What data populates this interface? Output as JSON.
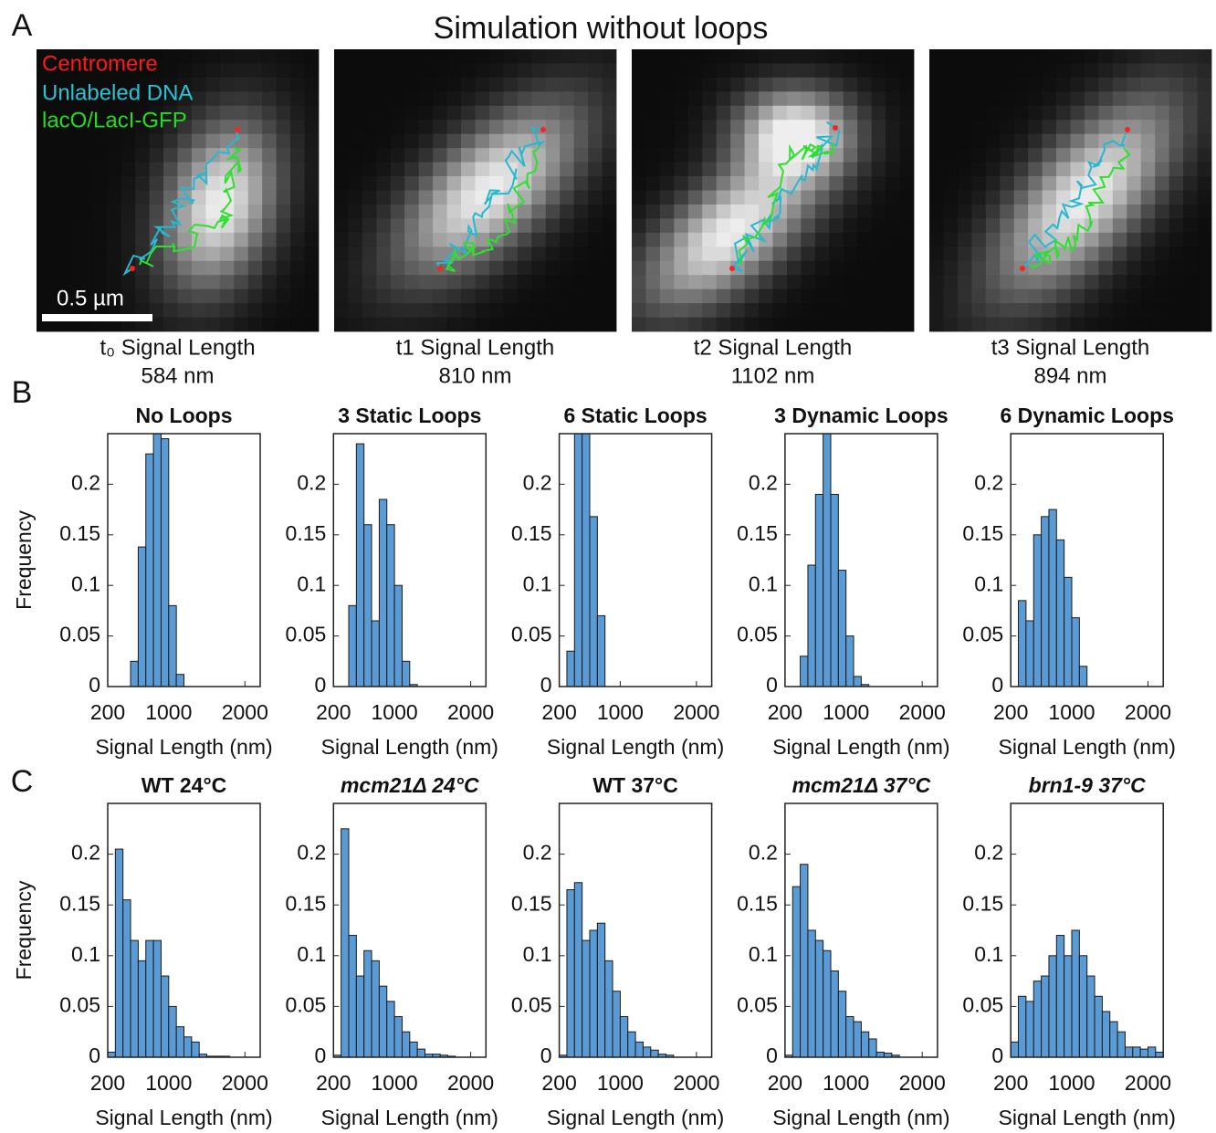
{
  "panel_labels": [
    "A",
    "B",
    "C"
  ],
  "simulation": {
    "title": "Simulation without loops",
    "legend": [
      "Centromere",
      "Unlabeled DNA",
      "lacO/LacI-GFP"
    ],
    "scale_bar": "0.5 µm",
    "captions": [
      {
        "label": "t₀ Signal Length",
        "length": "584 nm"
      },
      {
        "label": "t1 Signal Length",
        "length": "810 nm"
      },
      {
        "label": "t2 Signal Length",
        "length": "1102 nm"
      },
      {
        "label": "t3 Signal Length",
        "length": "894 nm"
      }
    ]
  },
  "chart_data": [
    {
      "type": "histogram",
      "title": "No Loops",
      "bins": [
        500,
        600,
        700,
        800,
        900,
        1000,
        1100,
        1200
      ],
      "values": [
        0.025,
        0.138,
        0.23,
        0.25,
        0.245,
        0.08,
        0.012
      ],
      "color": "#5b9bd5",
      "xlim": [
        200,
        2200
      ],
      "xticks": [
        200,
        1000,
        2000
      ],
      "ylim": [
        0,
        0.25
      ],
      "yticks": [
        0,
        0.05,
        0.1,
        0.15,
        0.2
      ],
      "xlabel": "Signal Length (nm)",
      "ylabel": "Frequency"
    },
    {
      "type": "histogram",
      "title": "3 Static Loops",
      "bins": [
        400,
        500,
        600,
        700,
        800,
        900,
        1000,
        1100,
        1200,
        1300
      ],
      "values": [
        0.08,
        0.24,
        0.16,
        0.065,
        0.185,
        0.16,
        0.1,
        0.025,
        0.002
      ],
      "color": "#5b9bd5",
      "xlim": [
        200,
        2200
      ],
      "xticks": [
        200,
        1000,
        2000
      ],
      "ylim": [
        0,
        0.25
      ],
      "yticks": [
        0,
        0.05,
        0.1,
        0.15,
        0.2
      ],
      "xlabel": "Signal Length (nm)"
    },
    {
      "type": "histogram",
      "title": "6 Static Loops",
      "bins": [
        300,
        400,
        500,
        600,
        700,
        800
      ],
      "values": [
        0.035,
        0.25,
        0.25,
        0.168,
        0.07
      ],
      "color": "#5b9bd5",
      "xlim": [
        200,
        2200
      ],
      "xticks": [
        200,
        1000,
        2000
      ],
      "ylim": [
        0,
        0.25
      ],
      "yticks": [
        0,
        0.05,
        0.1,
        0.15,
        0.2
      ],
      "xlabel": "Signal Length (nm)"
    },
    {
      "type": "histogram",
      "title": "3 Dynamic Loops",
      "bins": [
        400,
        500,
        600,
        700,
        800,
        900,
        1000,
        1100,
        1200,
        1300
      ],
      "values": [
        0.03,
        0.12,
        0.19,
        0.25,
        0.19,
        0.115,
        0.05,
        0.01,
        0.002
      ],
      "color": "#5b9bd5",
      "xlim": [
        200,
        2200
      ],
      "xticks": [
        200,
        1000,
        2000
      ],
      "ylim": [
        0,
        0.25
      ],
      "yticks": [
        0,
        0.05,
        0.1,
        0.15,
        0.2
      ],
      "xlabel": "Signal Length (nm)"
    },
    {
      "type": "histogram",
      "title": "6 Dynamic Loops",
      "bins": [
        300,
        400,
        500,
        600,
        700,
        800,
        900,
        1000,
        1100,
        1200
      ],
      "values": [
        0.085,
        0.065,
        0.15,
        0.168,
        0.175,
        0.145,
        0.108,
        0.068,
        0.02
      ],
      "color": "#5b9bd5",
      "xlim": [
        200,
        2200
      ],
      "xticks": [
        200,
        1000,
        2000
      ],
      "ylim": [
        0,
        0.25
      ],
      "yticks": [
        0,
        0.05,
        0.1,
        0.15,
        0.2
      ],
      "xlabel": "Signal Length (nm)"
    },
    {
      "type": "histogram",
      "title": "WT 24°C",
      "bins": [
        200,
        300,
        400,
        500,
        600,
        700,
        800,
        900,
        1000,
        1100,
        1200,
        1300,
        1400,
        1500,
        1600,
        1700,
        1800
      ],
      "values": [
        0.005,
        0.205,
        0.155,
        0.115,
        0.095,
        0.115,
        0.115,
        0.08,
        0.05,
        0.03,
        0.02,
        0.015,
        0.003,
        0.001,
        0.001,
        0.001
      ],
      "color": "#5b9bd5",
      "xlim": [
        200,
        2200
      ],
      "xticks": [
        200,
        1000,
        2000
      ],
      "ylim": [
        0,
        0.25
      ],
      "yticks": [
        0,
        0.05,
        0.1,
        0.15,
        0.2
      ],
      "xlabel": "Signal Length (nm)",
      "ylabel": "Frequency"
    },
    {
      "type": "histogram",
      "title": "mcm21Δ 24°C",
      "title_italic": true,
      "bins": [
        200,
        300,
        400,
        500,
        600,
        700,
        800,
        900,
        1000,
        1100,
        1200,
        1300,
        1400,
        1500,
        1600,
        1700,
        1800
      ],
      "values": [
        0.002,
        0.225,
        0.12,
        0.08,
        0.105,
        0.095,
        0.07,
        0.055,
        0.04,
        0.025,
        0.015,
        0.008,
        0.003,
        0.003,
        0.002,
        0.001
      ],
      "color": "#5b9bd5",
      "xlim": [
        200,
        2200
      ],
      "xticks": [
        200,
        1000,
        2000
      ],
      "ylim": [
        0,
        0.25
      ],
      "yticks": [
        0,
        0.05,
        0.1,
        0.15,
        0.2
      ],
      "xlabel": "Signal Length (nm)"
    },
    {
      "type": "histogram",
      "title": "WT 37°C",
      "bins": [
        200,
        300,
        400,
        500,
        600,
        700,
        800,
        900,
        1000,
        1100,
        1200,
        1300,
        1400,
        1500,
        1600,
        1700
      ],
      "values": [
        0.002,
        0.165,
        0.172,
        0.115,
        0.125,
        0.132,
        0.095,
        0.065,
        0.04,
        0.025,
        0.015,
        0.01,
        0.007,
        0.003,
        0.002
      ],
      "color": "#5b9bd5",
      "xlim": [
        200,
        2200
      ],
      "xticks": [
        200,
        1000,
        2000
      ],
      "ylim": [
        0,
        0.25
      ],
      "yticks": [
        0,
        0.05,
        0.1,
        0.15,
        0.2
      ],
      "xlabel": "Signal Length (nm)"
    },
    {
      "type": "histogram",
      "title": "mcm21Δ 37°C",
      "title_italic": true,
      "bins": [
        200,
        300,
        400,
        500,
        600,
        700,
        800,
        900,
        1000,
        1100,
        1200,
        1300,
        1400,
        1500,
        1600,
        1700
      ],
      "values": [
        0.002,
        0.168,
        0.19,
        0.125,
        0.115,
        0.105,
        0.085,
        0.065,
        0.04,
        0.035,
        0.025,
        0.018,
        0.005,
        0.004,
        0.002
      ],
      "color": "#5b9bd5",
      "xlim": [
        200,
        2200
      ],
      "xticks": [
        200,
        1000,
        2000
      ],
      "ylim": [
        0,
        0.25
      ],
      "yticks": [
        0,
        0.05,
        0.1,
        0.15,
        0.2
      ],
      "xlabel": "Signal Length (nm)"
    },
    {
      "type": "histogram",
      "title": "brn1-9 37°C",
      "title_italic": true,
      "bins": [
        200,
        300,
        400,
        500,
        600,
        700,
        800,
        900,
        1000,
        1100,
        1200,
        1300,
        1400,
        1500,
        1600,
        1700,
        1800,
        1900,
        2000,
        2100,
        2200
      ],
      "values": [
        0.015,
        0.06,
        0.055,
        0.075,
        0.08,
        0.1,
        0.12,
        0.1,
        0.125,
        0.1,
        0.08,
        0.06,
        0.045,
        0.035,
        0.025,
        0.01,
        0.01,
        0.008,
        0.01,
        0.005
      ],
      "color": "#5b9bd5",
      "xlim": [
        200,
        2200
      ],
      "xticks": [
        200,
        1000,
        2000
      ],
      "ylim": [
        0,
        0.25
      ],
      "yticks": [
        0,
        0.05,
        0.1,
        0.15,
        0.2
      ],
      "xlabel": "Signal Length (nm)"
    }
  ]
}
